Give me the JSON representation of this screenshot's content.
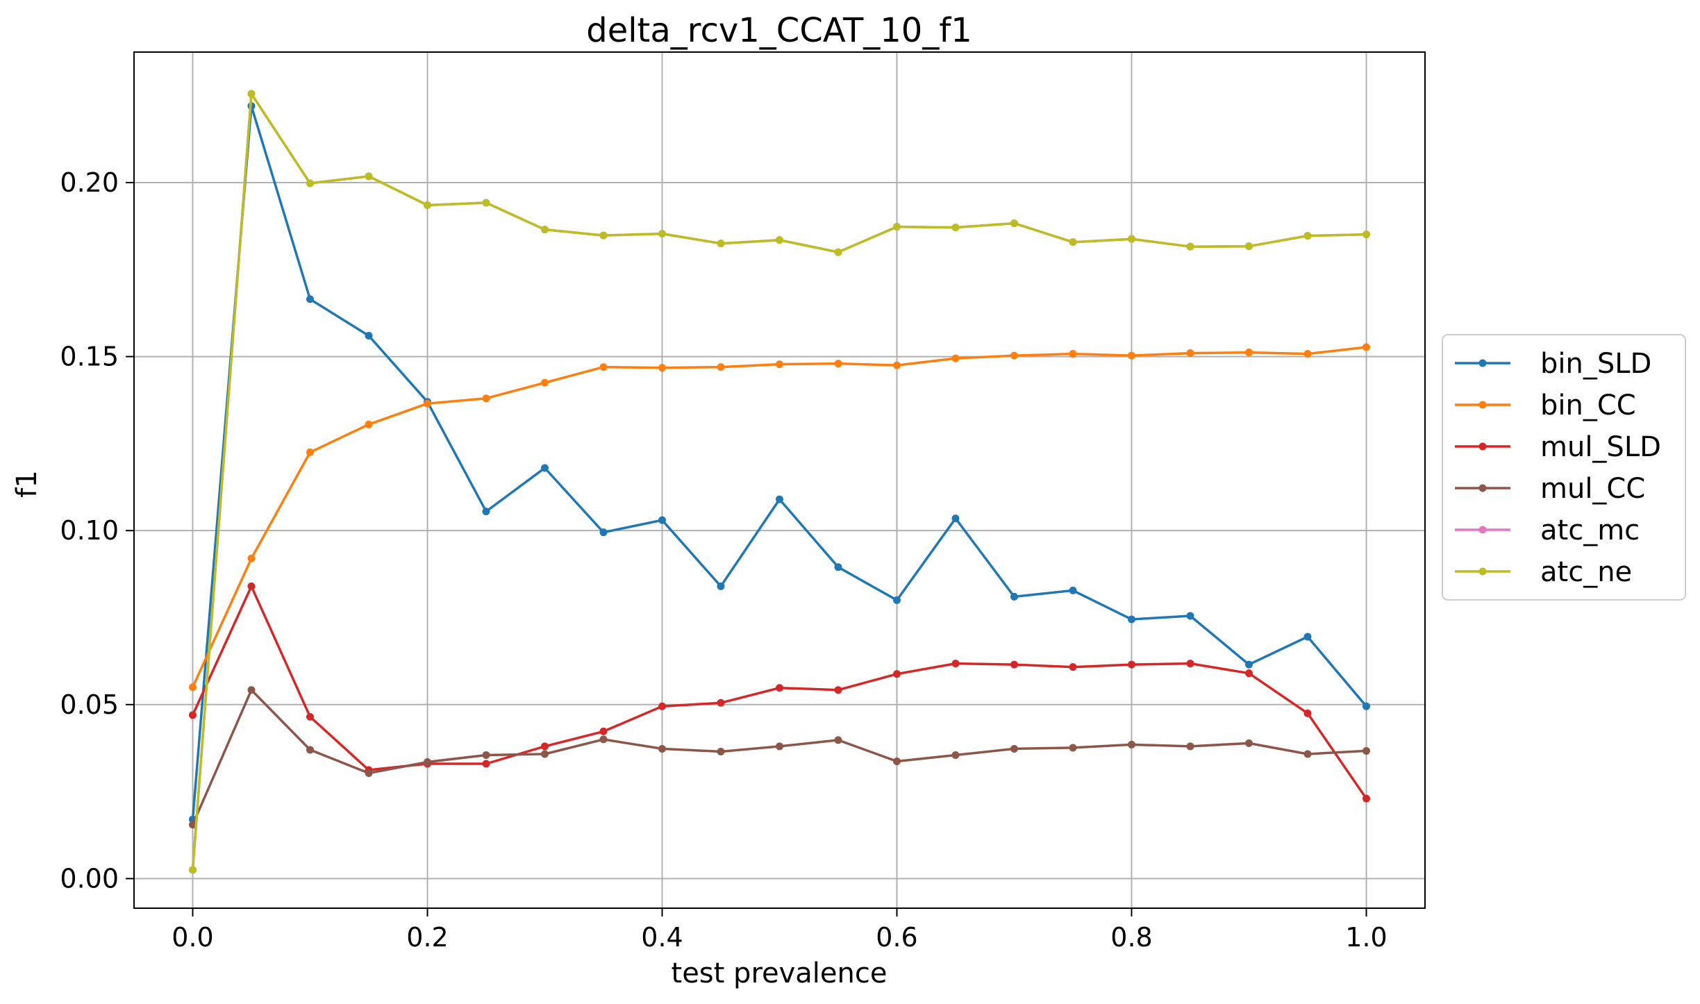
{
  "chart_data": {
    "type": "line",
    "title": "delta_rcv1_CCAT_10_f1",
    "xlabel": "test prevalence",
    "ylabel": "f1",
    "xlim": [
      -0.05,
      1.05
    ],
    "ylim": [
      -0.0085,
      0.2375
    ],
    "xticks": [
      0.0,
      0.2,
      0.4,
      0.6,
      0.8,
      1.0
    ],
    "xtick_labels": [
      "0.0",
      "0.2",
      "0.4",
      "0.6",
      "0.8",
      "1.0"
    ],
    "yticks": [
      0.0,
      0.05,
      0.1,
      0.15,
      0.2
    ],
    "ytick_labels": [
      "0.00",
      "0.05",
      "0.10",
      "0.15",
      "0.20"
    ],
    "grid": true,
    "legend_position": "right-outside",
    "x": [
      0.0,
      0.05,
      0.1,
      0.15,
      0.2,
      0.25,
      0.3,
      0.35,
      0.4,
      0.45,
      0.5,
      0.55,
      0.6,
      0.65,
      0.7,
      0.75,
      0.8,
      0.85,
      0.9,
      0.95,
      1.0
    ],
    "series": [
      {
        "name": "bin_SLD",
        "color": "#1f77b4",
        "values": [
          0.017,
          0.222,
          0.1665,
          0.156,
          0.137,
          0.1055,
          0.118,
          0.0995,
          0.103,
          0.084,
          0.109,
          0.0895,
          0.08,
          0.1035,
          0.081,
          0.0828,
          0.0745,
          0.0755,
          0.0615,
          0.0695,
          0.0495
        ]
      },
      {
        "name": "bin_CC",
        "color": "#ff7f0e",
        "values": [
          0.055,
          0.092,
          0.1225,
          0.1305,
          0.1365,
          0.138,
          0.1425,
          0.147,
          0.1468,
          0.147,
          0.1478,
          0.148,
          0.1475,
          0.1495,
          0.1503,
          0.1508,
          0.1503,
          0.151,
          0.1512,
          0.1508,
          0.1527
        ]
      },
      {
        "name": "mul_SLD",
        "color": "#d62728",
        "values": [
          0.047,
          0.084,
          0.0465,
          0.0312,
          0.033,
          0.033,
          0.038,
          0.0423,
          0.0495,
          0.0505,
          0.0548,
          0.0542,
          0.0588,
          0.0618,
          0.0615,
          0.0608,
          0.0615,
          0.0618,
          0.059,
          0.0475,
          0.023
        ]
      },
      {
        "name": "mul_CC",
        "color": "#8c564b",
        "values": [
          0.0155,
          0.0542,
          0.037,
          0.0303,
          0.0335,
          0.0355,
          0.0358,
          0.04,
          0.0373,
          0.0365,
          0.038,
          0.0398,
          0.0337,
          0.0355,
          0.0373,
          0.0376,
          0.0385,
          0.038,
          0.0389,
          0.0358,
          0.0367
        ]
      },
      {
        "name": "atc_mc",
        "color": "#e377c2",
        "values": [
          0.0025,
          0.2255,
          0.1998,
          0.2018,
          0.1935,
          0.1942,
          0.1865,
          0.1848,
          0.1853,
          0.1825,
          0.1835,
          0.18,
          0.1873,
          0.1871,
          0.1883,
          0.1829,
          0.1838,
          0.1816,
          0.1817,
          0.1847,
          0.1851
        ]
      },
      {
        "name": "atc_ne",
        "color": "#bcbd22",
        "values": [
          0.0025,
          0.2255,
          0.1998,
          0.2018,
          0.1935,
          0.1942,
          0.1865,
          0.1848,
          0.1853,
          0.1825,
          0.1835,
          0.18,
          0.1873,
          0.1871,
          0.1883,
          0.1829,
          0.1838,
          0.1816,
          0.1817,
          0.1847,
          0.1851
        ]
      }
    ]
  }
}
